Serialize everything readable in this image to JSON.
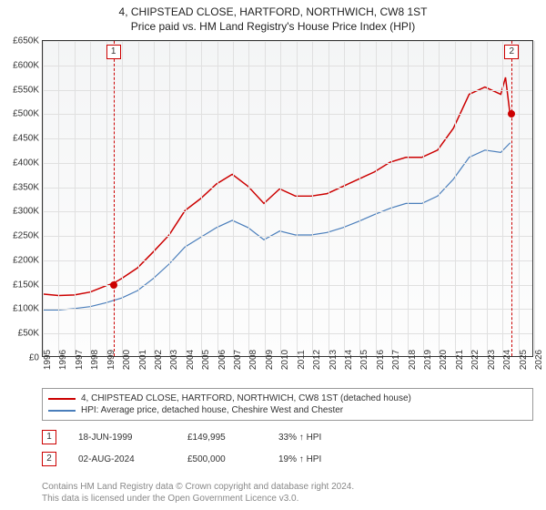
{
  "title": {
    "main": "4, CHIPSTEAD CLOSE, HARTFORD, NORTHWICH, CW8 1ST",
    "sub": "Price paid vs. HM Land Registry's House Price Index (HPI)"
  },
  "chart": {
    "type": "line",
    "background_gradient_top": "#f4f5f6",
    "background_gradient_bottom": "#fdfdfd",
    "border_color": "#333333",
    "grid_color": "#e0e0e0",
    "ylim": [
      0,
      650000
    ],
    "ytick_step": 50000,
    "yticks": [
      "£0",
      "£50K",
      "£100K",
      "£150K",
      "£200K",
      "£250K",
      "£300K",
      "£350K",
      "£400K",
      "£450K",
      "£500K",
      "£550K",
      "£600K",
      "£650K"
    ],
    "xlim": [
      1995,
      2026
    ],
    "xticks": [
      1995,
      1996,
      1997,
      1998,
      1999,
      2000,
      2001,
      2002,
      2003,
      2004,
      2005,
      2006,
      2007,
      2008,
      2009,
      2010,
      2011,
      2012,
      2013,
      2014,
      2015,
      2016,
      2017,
      2018,
      2019,
      2020,
      2021,
      2022,
      2023,
      2024,
      2025,
      2026
    ],
    "series": [
      {
        "name": "property",
        "color": "#cc0000",
        "line_width": 1.5,
        "points": [
          [
            1995,
            128000
          ],
          [
            1996,
            125000
          ],
          [
            1997,
            126000
          ],
          [
            1998,
            132000
          ],
          [
            1999,
            145000
          ],
          [
            1999.46,
            149995
          ],
          [
            2000,
            160000
          ],
          [
            2001,
            182000
          ],
          [
            2002,
            215000
          ],
          [
            2003,
            250000
          ],
          [
            2004,
            300000
          ],
          [
            2005,
            325000
          ],
          [
            2006,
            355000
          ],
          [
            2007,
            375000
          ],
          [
            2008,
            350000
          ],
          [
            2009,
            315000
          ],
          [
            2010,
            345000
          ],
          [
            2011,
            330000
          ],
          [
            2012,
            330000
          ],
          [
            2013,
            335000
          ],
          [
            2014,
            350000
          ],
          [
            2015,
            365000
          ],
          [
            2016,
            380000
          ],
          [
            2017,
            400000
          ],
          [
            2018,
            410000
          ],
          [
            2019,
            410000
          ],
          [
            2020,
            425000
          ],
          [
            2021,
            470000
          ],
          [
            2022,
            540000
          ],
          [
            2023,
            555000
          ],
          [
            2024,
            540000
          ],
          [
            2024.3,
            575000
          ],
          [
            2024.58,
            500000
          ]
        ]
      },
      {
        "name": "hpi",
        "color": "#4a7ebb",
        "line_width": 1.2,
        "points": [
          [
            1995,
            95000
          ],
          [
            1996,
            95000
          ],
          [
            1997,
            98000
          ],
          [
            1998,
            102000
          ],
          [
            1999,
            110000
          ],
          [
            2000,
            120000
          ],
          [
            2001,
            135000
          ],
          [
            2002,
            160000
          ],
          [
            2003,
            190000
          ],
          [
            2004,
            225000
          ],
          [
            2005,
            245000
          ],
          [
            2006,
            265000
          ],
          [
            2007,
            280000
          ],
          [
            2008,
            265000
          ],
          [
            2009,
            240000
          ],
          [
            2010,
            258000
          ],
          [
            2011,
            250000
          ],
          [
            2012,
            250000
          ],
          [
            2013,
            255000
          ],
          [
            2014,
            265000
          ],
          [
            2015,
            278000
          ],
          [
            2016,
            292000
          ],
          [
            2017,
            305000
          ],
          [
            2018,
            315000
          ],
          [
            2019,
            315000
          ],
          [
            2020,
            330000
          ],
          [
            2021,
            365000
          ],
          [
            2022,
            410000
          ],
          [
            2023,
            425000
          ],
          [
            2024,
            420000
          ],
          [
            2024.6,
            440000
          ]
        ]
      }
    ],
    "sale_markers": [
      {
        "id": "1",
        "x": 1999.46,
        "y": 149995,
        "color": "#cc0000"
      },
      {
        "id": "2",
        "x": 2024.58,
        "y": 500000,
        "color": "#cc0000"
      }
    ],
    "annotations": [
      {
        "id": "1",
        "x": 1999.46,
        "color": "#cc0000"
      },
      {
        "id": "2",
        "x": 2024.58,
        "color": "#cc0000"
      }
    ]
  },
  "legend": {
    "items": [
      {
        "color": "#cc0000",
        "label": "4, CHIPSTEAD CLOSE, HARTFORD, NORTHWICH, CW8 1ST (detached house)"
      },
      {
        "color": "#4a7ebb",
        "label": "HPI: Average price, detached house, Cheshire West and Chester"
      }
    ]
  },
  "sales": [
    {
      "id": "1",
      "badge_color": "#cc0000",
      "date": "18-JUN-1999",
      "price": "£149,995",
      "diff": "33% ↑ HPI"
    },
    {
      "id": "2",
      "badge_color": "#cc0000",
      "date": "02-AUG-2024",
      "price": "£500,000",
      "diff": "19% ↑ HPI"
    }
  ],
  "footer": {
    "line1": "Contains HM Land Registry data © Crown copyright and database right 2024.",
    "line2": "This data is licensed under the Open Government Licence v3.0."
  },
  "colors": {
    "text": "#333333",
    "muted": "#888888",
    "border": "#999999"
  },
  "fontsize": {
    "title": 12,
    "axis": 10,
    "legend": 10,
    "footer": 10
  }
}
